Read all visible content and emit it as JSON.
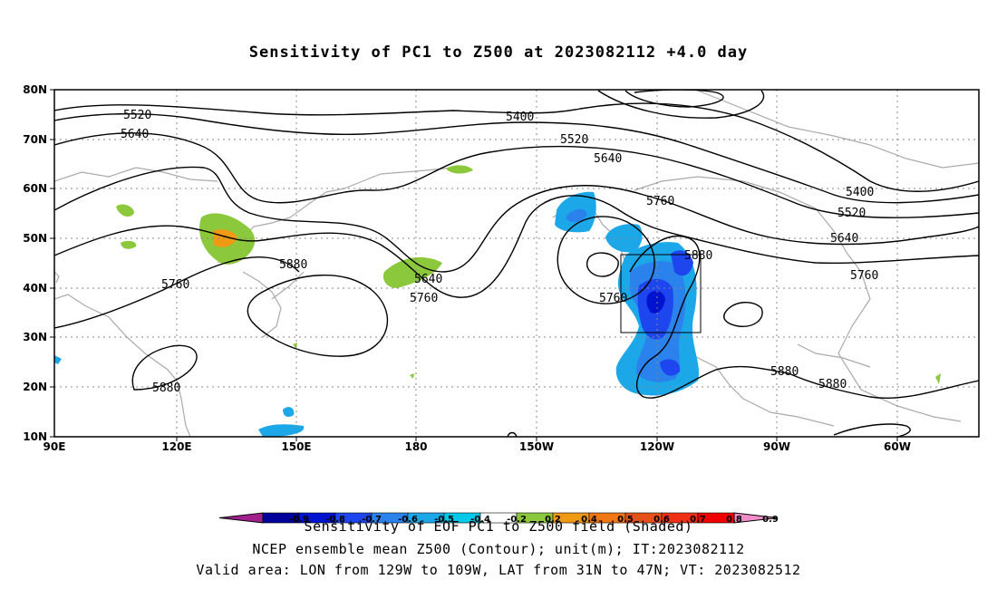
{
  "title": "Sensitivity of PC1 to Z500 at 2023082112 +4.0 day",
  "axes": {
    "lat_ticks": [
      "80N",
      "70N",
      "60N",
      "50N",
      "40N",
      "30N",
      "20N",
      "10N"
    ],
    "lon_ticks": [
      "90E",
      "120E",
      "150E",
      "180",
      "150W",
      "120W",
      "90W",
      "60W"
    ],
    "lon_range": [
      "90E",
      "55W"
    ],
    "lat_range": [
      "10N",
      "80N"
    ],
    "grid": "dotted"
  },
  "contour_labels": [
    "5520",
    "5640",
    "5400",
    "5520",
    "5640",
    "5760",
    "5400",
    "5520",
    "5640",
    "5760",
    "5880",
    "5760",
    "5640",
    "5760",
    "5880",
    "5760",
    "5880",
    "5880",
    "5880"
  ],
  "valid_box": {
    "lon_min": "129W",
    "lon_max": "109W",
    "lat_min": "31N",
    "lat_max": "47N"
  },
  "colorbar": {
    "labels": [
      "-0.9",
      "-0.8",
      "-0.7",
      "-0.6",
      "-0.5",
      "-0.4",
      "-0.2",
      "0.2",
      "0.4",
      "0.5",
      "0.6",
      "0.7",
      "0.8",
      "0.9"
    ],
    "colors": [
      "#a0208c",
      "#00009a",
      "#0014d0",
      "#1e46ee",
      "#2b82ec",
      "#1ca8e8",
      "#00c8e8",
      "#ffffff",
      "#8cc83c",
      "#f09a14",
      "#f07814",
      "#e8501a",
      "#f03014",
      "#f00000",
      "#f08cc8"
    ]
  },
  "footer": {
    "line1": "Sensitivity of EOF PC1 to Z500 field (Shaded)",
    "line2": "NCEP ensemble mean Z500 (Contour); unit(m); IT:2023082112",
    "line3": "Valid area: LON from 129W to 109W, LAT from 31N to 47N; VT: 2023082512"
  },
  "colors": {
    "contour": "#000000",
    "coastline": "#aaaaaa",
    "negative_shading": "#1e78f0",
    "positive_shading": "#8cc83c"
  }
}
